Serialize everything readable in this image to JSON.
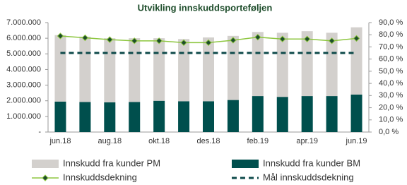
{
  "chart_data": {
    "type": "bar",
    "stacked": true,
    "title": "Utvikling innskuddsporteføljen",
    "categories": [
      "jun.18",
      null,
      "aug.18",
      null,
      "okt.18",
      null,
      "des.18",
      null,
      "feb.19",
      null,
      "apr.19",
      null,
      "jun.19"
    ],
    "series": [
      {
        "name": "Innskudd fra kunder PM",
        "type": "bar",
        "color": "#d3d0cd",
        "values": [
          4250000,
          4180000,
          4100000,
          4080000,
          4000000,
          3980000,
          4080000,
          4100000,
          4100000,
          4100000,
          4150000,
          4050000,
          4300000
        ]
      },
      {
        "name": "Innskudd fra kunder BM",
        "type": "bar",
        "color": "#004f4d",
        "values": [
          1950000,
          1920000,
          1900000,
          1920000,
          2000000,
          1970000,
          1970000,
          2050000,
          2300000,
          2250000,
          2300000,
          2300000,
          2400000
        ]
      },
      {
        "name": "Innskuddsdekning",
        "type": "line",
        "axis": "y2",
        "color": "#8dc63f",
        "marker_color": "#1e4d2b",
        "values": [
          79,
          77.5,
          76,
          75,
          75,
          73.5,
          73.5,
          75.5,
          78,
          76.5,
          76.5,
          75,
          77
        ]
      },
      {
        "name": "Mål innskuddsdekning",
        "type": "line",
        "axis": "y2",
        "dashed": true,
        "color": "#0e4a4a",
        "values": [
          65,
          65,
          65,
          65,
          65,
          65,
          65,
          65,
          65,
          65,
          65,
          65,
          65
        ]
      }
    ],
    "ylim": [
      0,
      7000000
    ],
    "yticks": [
      {
        "value": 0,
        "label": "-"
      },
      {
        "value": 1000000,
        "label": "1.000.000"
      },
      {
        "value": 2000000,
        "label": "2.000.000"
      },
      {
        "value": 3000000,
        "label": "3.000.000"
      },
      {
        "value": 4000000,
        "label": "4.000.000"
      },
      {
        "value": 5000000,
        "label": "5.000.000"
      },
      {
        "value": 6000000,
        "label": "6.000.000"
      },
      {
        "value": 7000000,
        "label": "7.000.000"
      }
    ],
    "y2lim": [
      0,
      90
    ],
    "y2ticks": [
      {
        "value": 0,
        "label": "0,0 %"
      },
      {
        "value": 10,
        "label": "10,0 %"
      },
      {
        "value": 20,
        "label": "20,0 %"
      },
      {
        "value": 30,
        "label": "30,0 %"
      },
      {
        "value": 40,
        "label": "40,0 %"
      },
      {
        "value": 50,
        "label": "50,0 %"
      },
      {
        "value": 60,
        "label": "60,0 %"
      },
      {
        "value": 70,
        "label": "70,0 %"
      },
      {
        "value": 80,
        "label": "80,0 %"
      },
      {
        "value": 90,
        "label": "90,0 %"
      }
    ],
    "grid": false
  }
}
